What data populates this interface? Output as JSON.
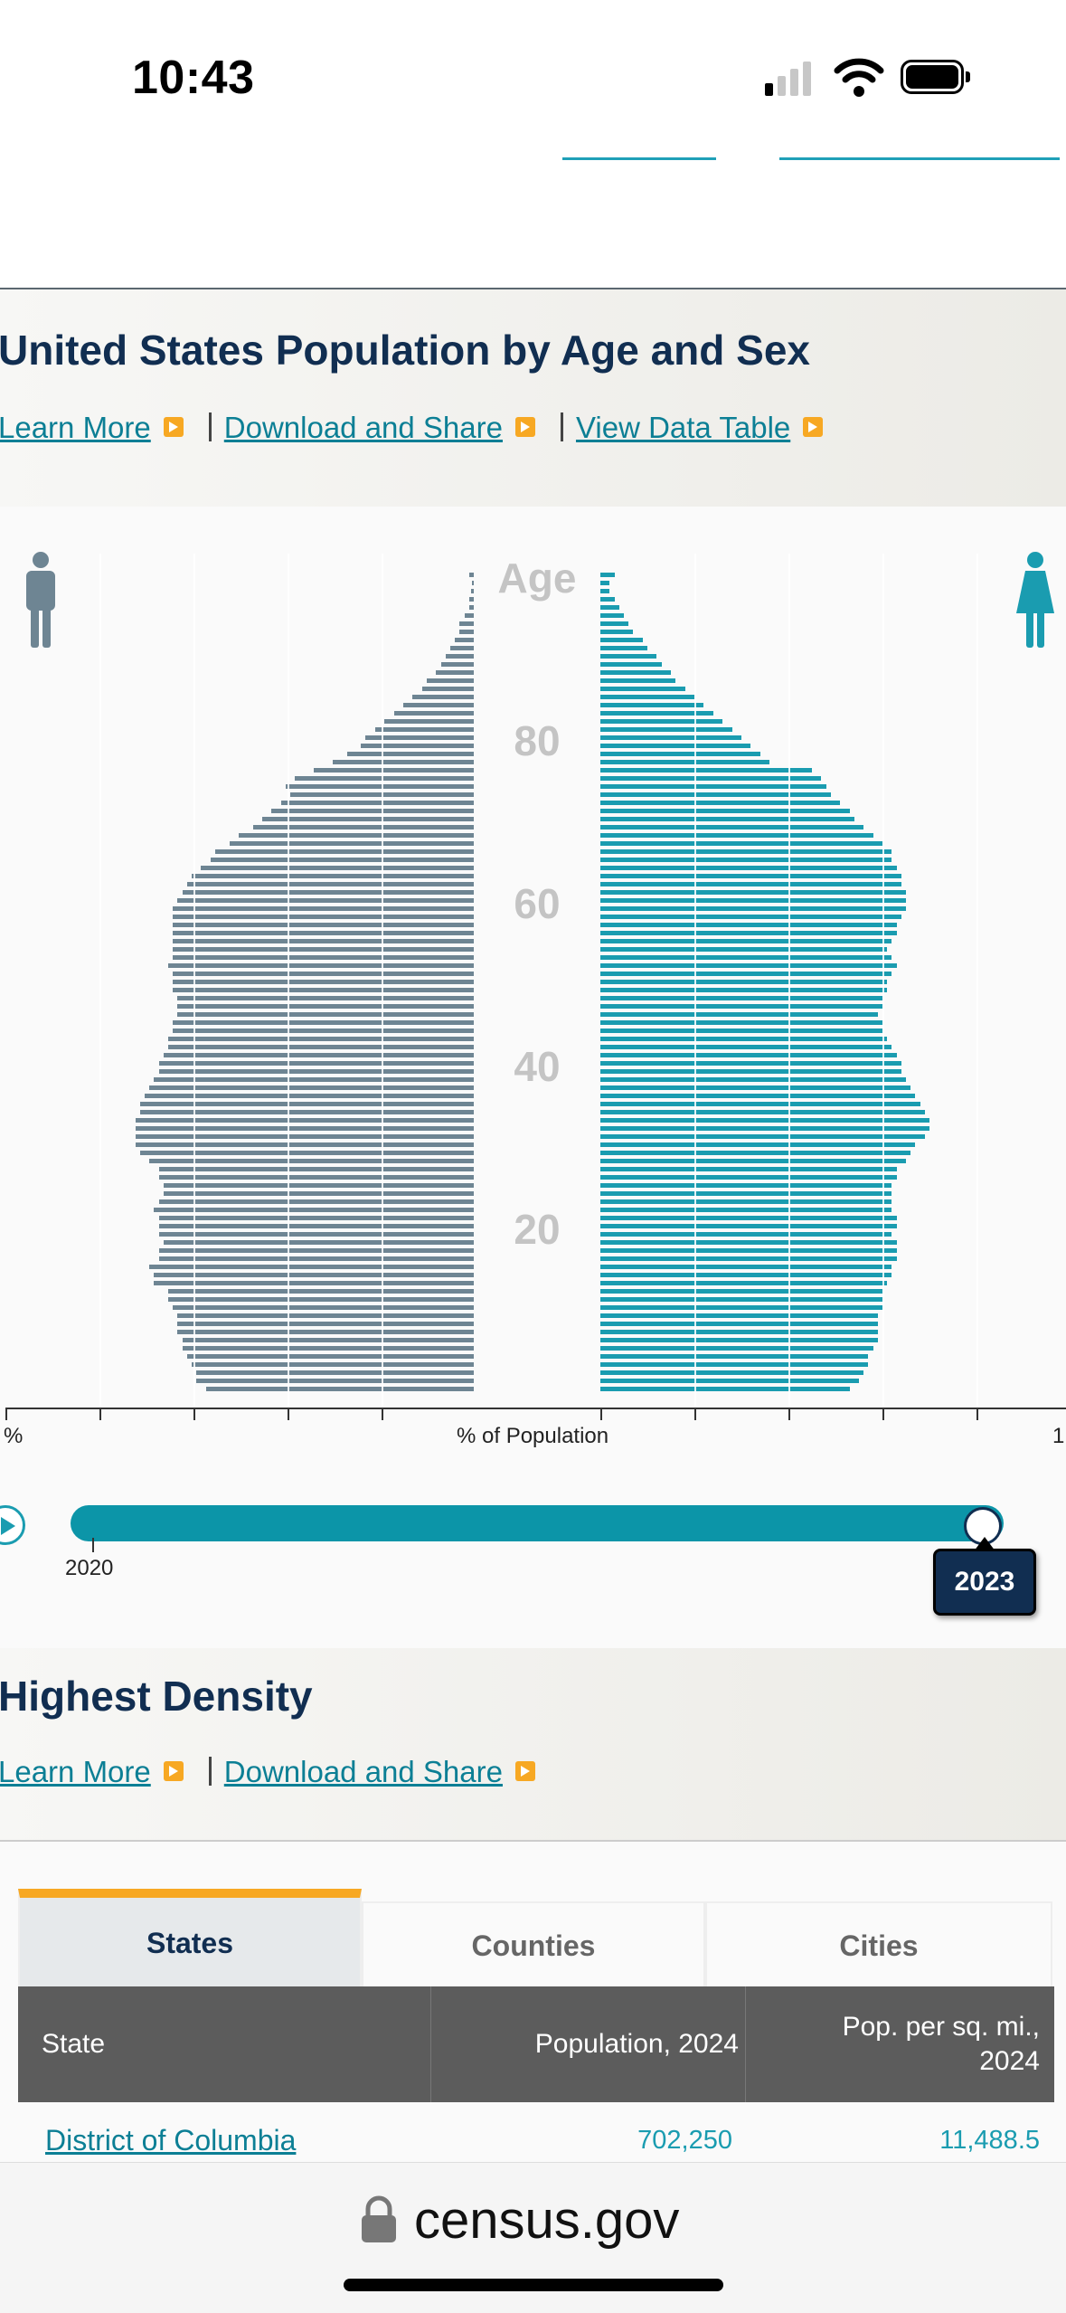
{
  "status_bar": {
    "time": "10:43"
  },
  "pyramid_section": {
    "title": "United States Population by Age and Sex",
    "links": {
      "learn_more": "Learn More",
      "download": "Download and Share",
      "view_table": "View Data Table"
    },
    "age_header": "Age",
    "age_ticks": [
      "80",
      "60",
      "40",
      "20"
    ],
    "x_axis_label": "% of Population",
    "x_left_label": "%",
    "x_right_label": "1"
  },
  "slider": {
    "start_year": "2020",
    "current_year": "2023",
    "position": 1.0
  },
  "density_section": {
    "title": "Highest Density",
    "links": {
      "learn_more": "Learn More",
      "download": "Download and Share"
    }
  },
  "tabs": [
    "States",
    "Counties",
    "Cities"
  ],
  "table": {
    "headers": {
      "state": "State",
      "population": "Population, 2024",
      "density": "Pop. per sq. mi., 2024"
    },
    "rows": [
      {
        "state": "District of Columbia",
        "population": "702,250",
        "density": "11,488.5"
      }
    ]
  },
  "address_bar": {
    "domain": "census.gov"
  },
  "colors": {
    "male": "#6e8593",
    "female": "#1a9cb0",
    "accent": "#f7a823",
    "navy": "#112e51"
  },
  "chart_data": {
    "type": "bar",
    "description_of_axes": "",
    "ages": [
      0,
      1,
      2,
      3,
      4,
      5,
      6,
      7,
      8,
      9,
      10,
      11,
      12,
      13,
      14,
      15,
      16,
      17,
      18,
      19,
      20,
      21,
      22,
      23,
      24,
      25,
      26,
      27,
      28,
      29,
      30,
      31,
      32,
      33,
      34,
      35,
      36,
      37,
      38,
      39,
      40,
      41,
      42,
      43,
      44,
      45,
      46,
      47,
      48,
      49,
      50,
      51,
      52,
      53,
      54,
      55,
      56,
      57,
      58,
      59,
      60,
      61,
      62,
      63,
      64,
      65,
      66,
      67,
      68,
      69,
      70,
      71,
      72,
      73,
      74,
      75,
      76,
      77,
      78,
      79,
      80,
      81,
      82,
      83,
      84,
      85,
      86,
      87,
      88,
      89,
      90,
      91,
      92,
      93,
      94,
      95,
      96,
      97,
      98,
      99,
      100
    ],
    "series": [
      {
        "name": "Male",
        "values": [
          0.57,
          0.59,
          0.59,
          0.6,
          0.61,
          0.62,
          0.62,
          0.63,
          0.63,
          0.63,
          0.64,
          0.65,
          0.65,
          0.68,
          0.68,
          0.69,
          0.67,
          0.67,
          0.66,
          0.67,
          0.67,
          0.67,
          0.68,
          0.67,
          0.66,
          0.66,
          0.67,
          0.67,
          0.69,
          0.71,
          0.72,
          0.72,
          0.72,
          0.72,
          0.71,
          0.71,
          0.7,
          0.69,
          0.68,
          0.67,
          0.67,
          0.66,
          0.65,
          0.65,
          0.64,
          0.64,
          0.63,
          0.63,
          0.63,
          0.64,
          0.64,
          0.64,
          0.65,
          0.64,
          0.64,
          0.64,
          0.64,
          0.64,
          0.64,
          0.64,
          0.63,
          0.62,
          0.61,
          0.6,
          0.58,
          0.56,
          0.55,
          0.52,
          0.5,
          0.47,
          0.45,
          0.43,
          0.41,
          0.39,
          0.4,
          0.38,
          0.34,
          0.3,
          0.27,
          0.24,
          0.23,
          0.21,
          0.19,
          0.17,
          0.15,
          0.13,
          0.11,
          0.1,
          0.08,
          0.07,
          0.06,
          0.05,
          0.04,
          0.03,
          0.03,
          0.02,
          0.01,
          0.01,
          0.005,
          0.003,
          0.01
        ]
      },
      {
        "name": "Female",
        "values": [
          0.53,
          0.55,
          0.56,
          0.57,
          0.57,
          0.58,
          0.59,
          0.59,
          0.59,
          0.59,
          0.6,
          0.6,
          0.6,
          0.61,
          0.62,
          0.62,
          0.63,
          0.63,
          0.63,
          0.62,
          0.63,
          0.63,
          0.62,
          0.62,
          0.62,
          0.62,
          0.63,
          0.63,
          0.65,
          0.66,
          0.67,
          0.69,
          0.7,
          0.7,
          0.69,
          0.68,
          0.67,
          0.66,
          0.65,
          0.64,
          0.64,
          0.63,
          0.62,
          0.61,
          0.6,
          0.6,
          0.59,
          0.6,
          0.6,
          0.61,
          0.61,
          0.62,
          0.63,
          0.62,
          0.61,
          0.62,
          0.63,
          0.63,
          0.64,
          0.65,
          0.65,
          0.65,
          0.64,
          0.64,
          0.63,
          0.62,
          0.62,
          0.6,
          0.58,
          0.56,
          0.54,
          0.53,
          0.51,
          0.49,
          0.48,
          0.47,
          0.45,
          0.36,
          0.34,
          0.32,
          0.3,
          0.28,
          0.26,
          0.24,
          0.22,
          0.2,
          0.18,
          0.16,
          0.15,
          0.13,
          0.12,
          0.1,
          0.09,
          0.07,
          0.06,
          0.05,
          0.04,
          0.03,
          0.02,
          0.02,
          0.03
        ]
      }
    ]
  }
}
